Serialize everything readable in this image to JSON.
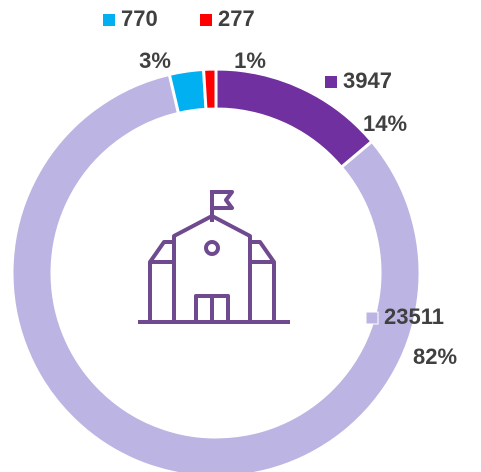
{
  "chart_data": {
    "type": "donut",
    "values": [
      3947,
      23511,
      770,
      277
    ],
    "value_labels": [
      "14%",
      "82%",
      "3%",
      "1%"
    ],
    "colors": [
      "#7030a0",
      "#bcb4e2",
      "#00b0f0",
      "#ff0000"
    ]
  }
}
